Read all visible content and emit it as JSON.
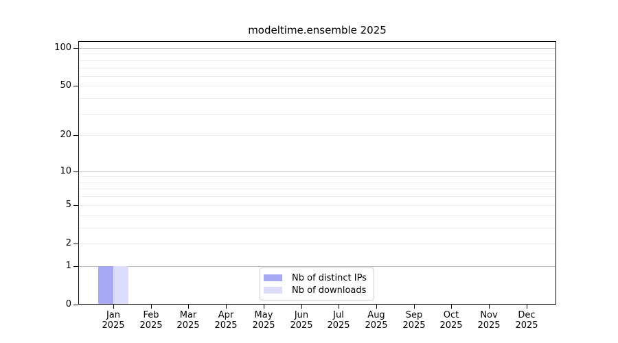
{
  "chart_data": {
    "type": "bar",
    "title": "modeltime.ensemble 2025",
    "year_label": "2025",
    "categories": [
      "Jan",
      "Feb",
      "Mar",
      "Apr",
      "May",
      "Jun",
      "Jul",
      "Aug",
      "Sep",
      "Oct",
      "Nov",
      "Dec"
    ],
    "series": [
      {
        "name": "Nb of distinct IPs",
        "color": "#a7a9f4",
        "values": [
          1,
          0,
          0,
          0,
          0,
          0,
          0,
          0,
          0,
          0,
          0,
          0
        ]
      },
      {
        "name": "Nb of downloads",
        "color": "#dcddfa",
        "values": [
          1,
          0,
          0,
          0,
          0,
          0,
          0,
          0,
          0,
          0,
          0,
          0
        ]
      }
    ],
    "xlabel": "",
    "ylabel": "",
    "yscale": "log1p",
    "ylim": [
      0,
      113
    ],
    "yticks": [
      0,
      1,
      2,
      5,
      10,
      20,
      50,
      100
    ],
    "gridlines_major": [
      1,
      10,
      100
    ],
    "gridlines_minor": [
      2,
      3,
      4,
      5,
      6,
      7,
      8,
      9,
      20,
      30,
      40,
      50,
      60,
      70,
      80,
      90
    ],
    "grid": true,
    "legend_position": "inside-bottom-center",
    "colors": {
      "major_grid": "#bdbdbd",
      "minor_grid": "#ededed",
      "axis": "#000000",
      "background": "#ffffff"
    }
  }
}
